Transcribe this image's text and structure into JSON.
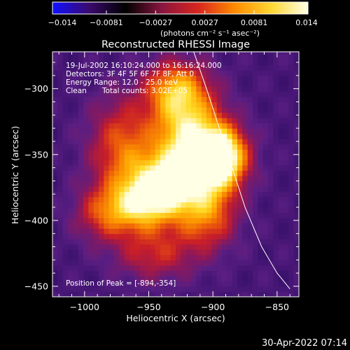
{
  "chart_data": {
    "type": "heatmap",
    "title": "Reconstructed RHESSI Image",
    "xlabel": "Heliocentric X (arcsec)",
    "ylabel": "Heliocentric Y (arcsec)",
    "xlim": [
      -1025,
      -833
    ],
    "ylim": [
      -458,
      -272
    ],
    "x_ticks": [
      -1000,
      -950,
      -900,
      -850
    ],
    "x_tick_labels": [
      "−1000",
      "−950",
      "−900",
      "−850"
    ],
    "y_ticks": [
      -300,
      -350,
      -400,
      -450
    ],
    "y_tick_labels": [
      "−300",
      "−350",
      "−400",
      "−450"
    ],
    "colorbar": {
      "min": -0.014,
      "max": 0.014,
      "ticks": [
        -0.014,
        -0.0081,
        -0.0027,
        0.0027,
        0.0081,
        0.014
      ],
      "tick_labels": [
        "−0.014",
        "−0.0081",
        "−0.0027",
        "0.0027",
        "0.0081",
        "0.014"
      ],
      "units_label": "(photons cm⁻² s⁻¹ asec⁻²)",
      "colormap": "rhessi-heat",
      "colors": [
        "#1010ff",
        "#3a0a6e",
        "#000000",
        "#8a1540",
        "#d8261e",
        "#ff8c00",
        "#ffd733",
        "#ffffe8"
      ]
    },
    "annotations": [
      "19-Jul-2002 16:10:24.000 to 16:16:24.000",
      "Detectors: 3F 4F 5F 6F 7F 8F, Att 0",
      "Energy Range: 12.0 - 25.0 keV",
      "Clean",
      "Total counts: 3.02E+05"
    ],
    "peak_label": "Position of Peak = [-894,-354]",
    "peak": [
      -894,
      -354
    ],
    "limb_curve": [
      [
        -915,
        -272
      ],
      [
        -905,
        -300
      ],
      [
        -895,
        -330
      ],
      [
        -885,
        -360
      ],
      [
        -875,
        -390
      ],
      [
        -862,
        -420
      ],
      [
        -850,
        -440
      ],
      [
        -840,
        -452
      ]
    ],
    "sources": [
      {
        "x": -894,
        "y": -352,
        "sx": 14,
        "sy": 16,
        "amp": 1.0
      },
      {
        "x": -920,
        "y": -335,
        "sx": 18,
        "sy": 26,
        "amp": 0.72
      },
      {
        "x": -935,
        "y": -372,
        "sx": 20,
        "sy": 16,
        "amp": 0.68
      },
      {
        "x": -955,
        "y": -388,
        "sx": 18,
        "sy": 14,
        "amp": 0.55
      },
      {
        "x": -930,
        "y": -300,
        "sx": 16,
        "sy": 14,
        "amp": 0.45
      },
      {
        "x": -970,
        "y": -345,
        "sx": 18,
        "sy": 26,
        "amp": 0.42
      },
      {
        "x": -985,
        "y": -395,
        "sx": 16,
        "sy": 14,
        "amp": 0.32
      },
      {
        "x": -945,
        "y": -425,
        "sx": 22,
        "sy": 14,
        "amp": 0.3
      },
      {
        "x": -905,
        "y": -395,
        "sx": 16,
        "sy": 18,
        "amp": 0.45
      }
    ]
  },
  "timestamp": "30-Apr-2022 07:14"
}
